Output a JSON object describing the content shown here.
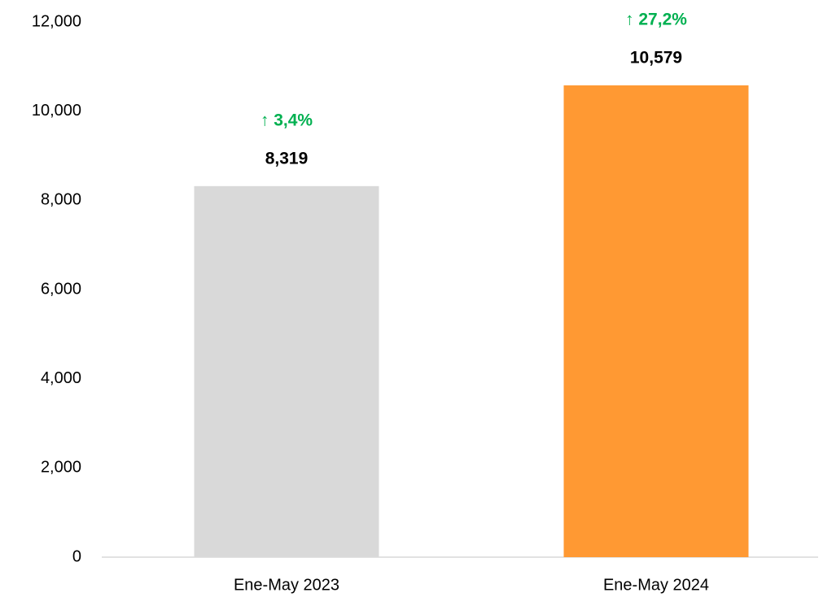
{
  "chart_data": {
    "type": "bar",
    "categories": [
      "Ene-May 2023",
      "Ene-May 2024"
    ],
    "values": [
      8319,
      10579
    ],
    "value_labels": [
      "8,319",
      "10,579"
    ],
    "colors": [
      "#d9d9d9",
      "#ff9933"
    ],
    "annotations": [
      "↑ 3,4%",
      "↑ 27,2%"
    ],
    "annotation_color": "#00b050",
    "ylim": [
      0,
      12000
    ],
    "yticks": [
      0,
      {
        "value": 2000,
        "label": "2,000"
      },
      {
        "value": 4000,
        "label": "4,000"
      },
      {
        "value": 6000,
        "label": "6,000"
      },
      {
        "value": 8000,
        "label": "8,000"
      },
      {
        "value": 10000,
        "label": "10,000"
      },
      {
        "value": 12000,
        "label": "12,000"
      }
    ],
    "grid": false
  }
}
